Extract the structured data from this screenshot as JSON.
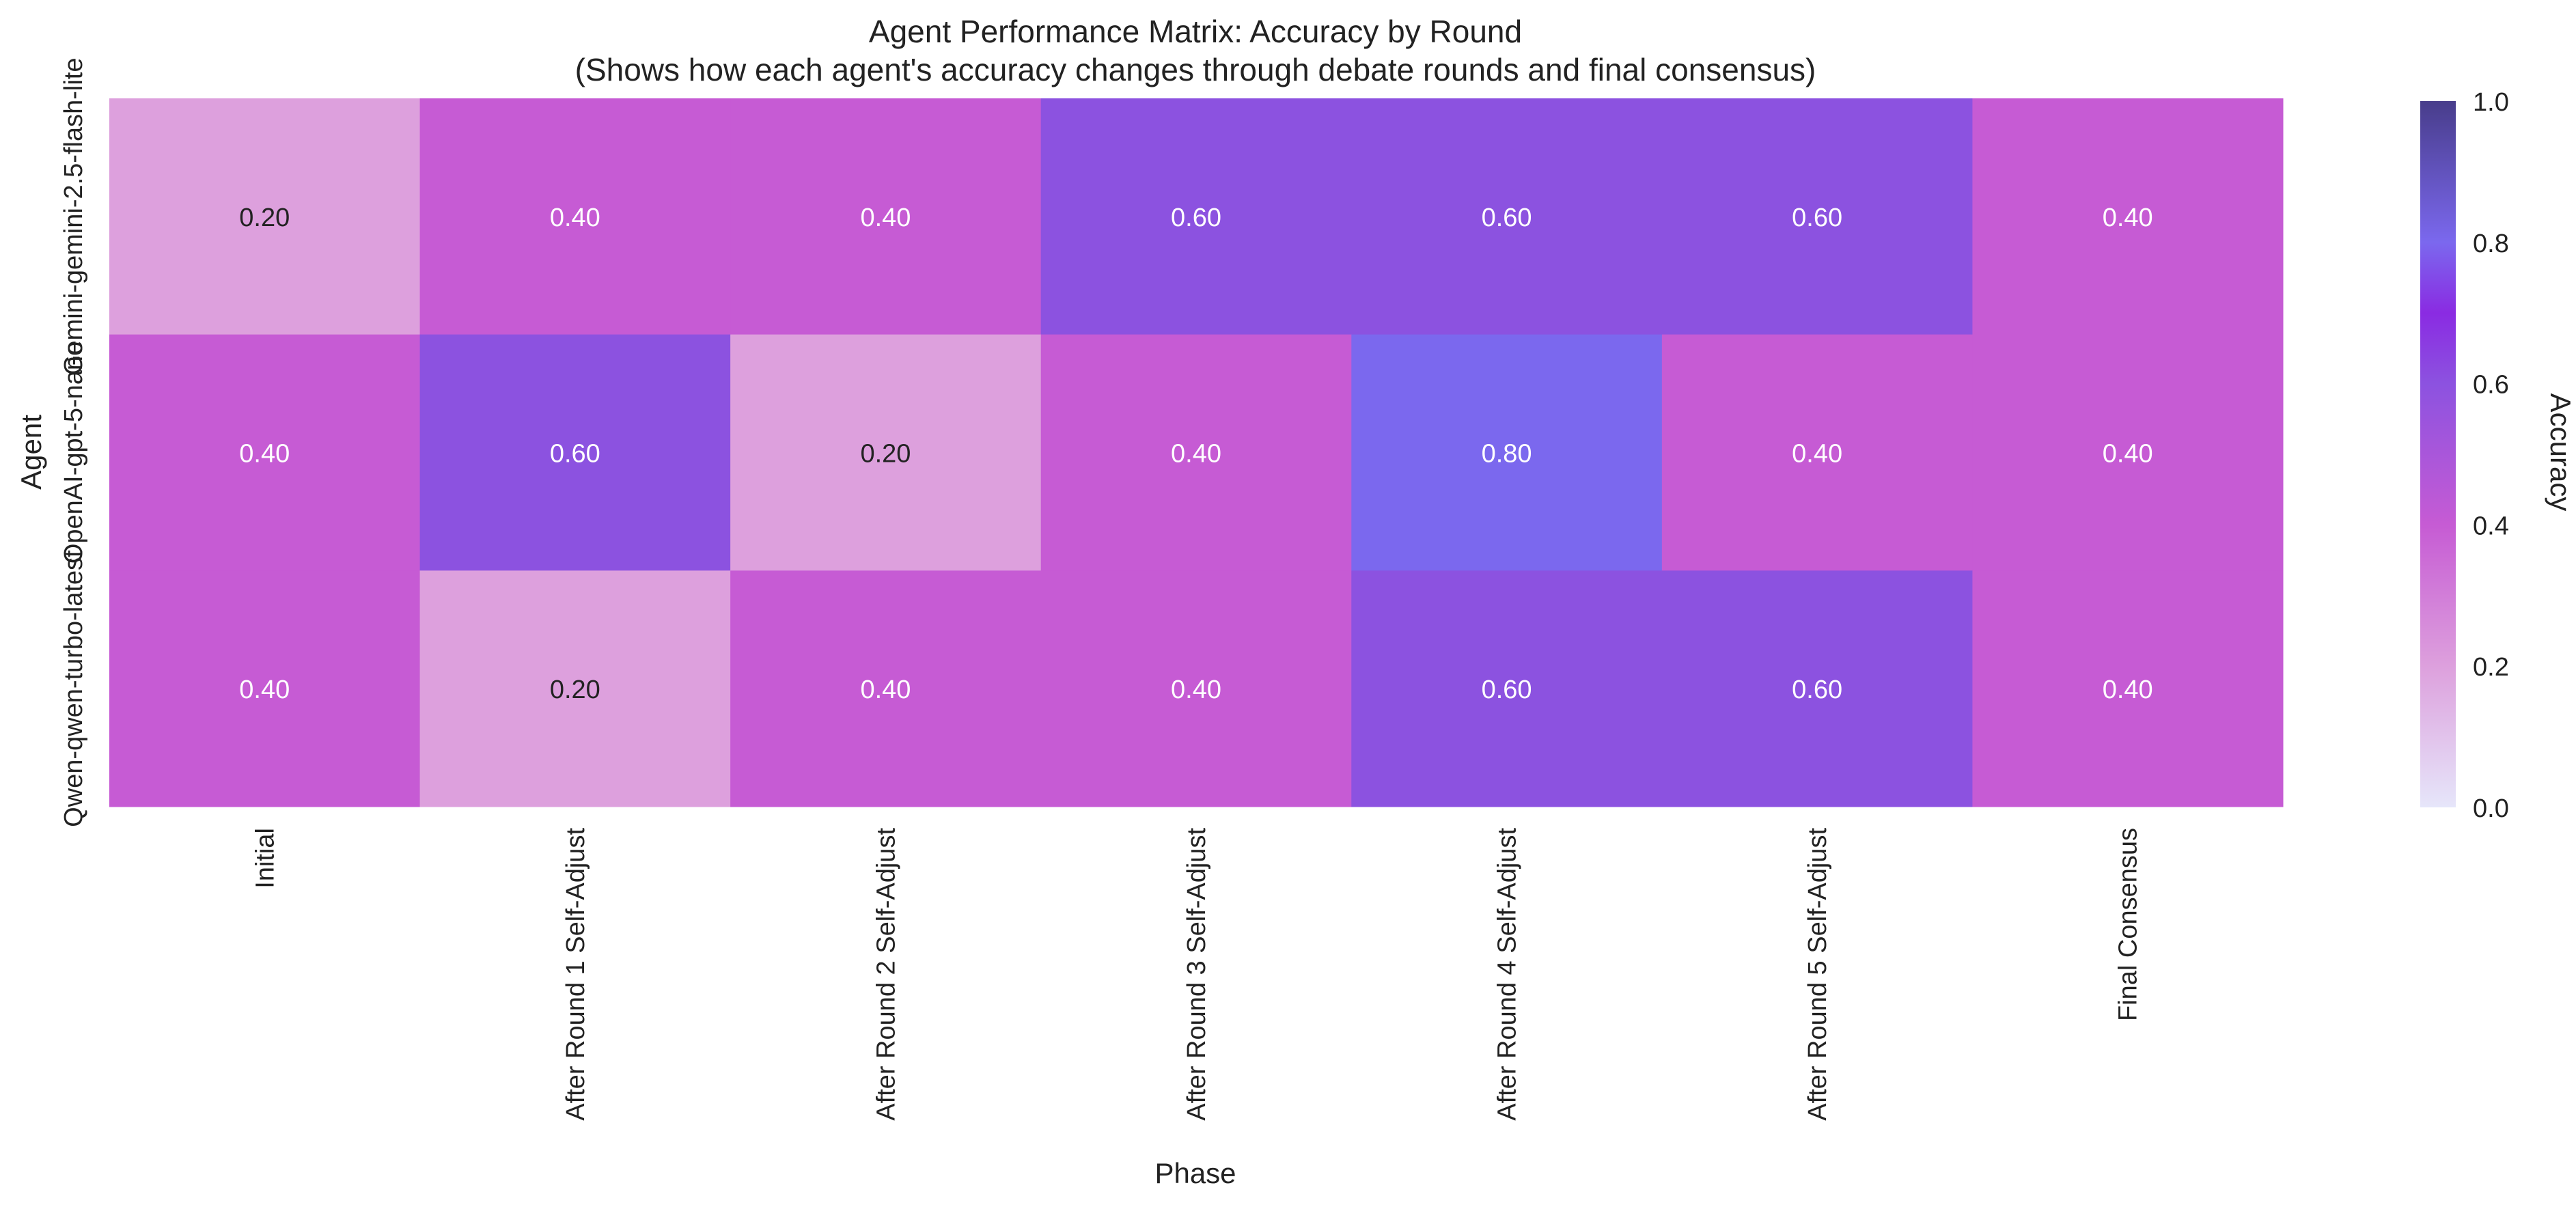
{
  "chart_data": {
    "type": "heatmap",
    "title": "Agent Performance Matrix: Accuracy by Round",
    "subtitle": "(Shows how each agent's accuracy changes through debate rounds and final consensus)",
    "xlabel": "Phase",
    "ylabel": "Agent",
    "x_categories": [
      "Initial",
      "After Round 1 Self-Adjust",
      "After Round 2 Self-Adjust",
      "After Round 3 Self-Adjust",
      "After Round 4 Self-Adjust",
      "After Round 5 Self-Adjust",
      "Final Consensus"
    ],
    "y_categories": [
      "Gemini-gemini-2.5-flash-lite",
      "OpenAI-gpt-5-nano",
      "Qwen-qwen-turbo-latest"
    ],
    "values": [
      [
        0.2,
        0.4,
        0.4,
        0.6,
        0.6,
        0.6,
        0.4
      ],
      [
        0.4,
        0.6,
        0.2,
        0.4,
        0.8,
        0.4,
        0.4
      ],
      [
        0.4,
        0.2,
        0.4,
        0.4,
        0.6,
        0.6,
        0.4
      ]
    ],
    "value_format": "0.00",
    "colorbar": {
      "label": "Accuracy",
      "range": [
        0.0,
        1.0
      ],
      "ticks": [
        "0.0",
        "0.2",
        "0.4",
        "0.6",
        "0.8",
        "1.0"
      ]
    },
    "colors": {
      "0.0": "#e6e6fa",
      "0.2": "#dda0dd",
      "0.4": "#c65bd4",
      "0.6": "#8c52e0",
      "0.7": "#8a2be2",
      "0.8": "#7b68ee",
      "1.0": "#483d8b"
    },
    "grid": false
  }
}
